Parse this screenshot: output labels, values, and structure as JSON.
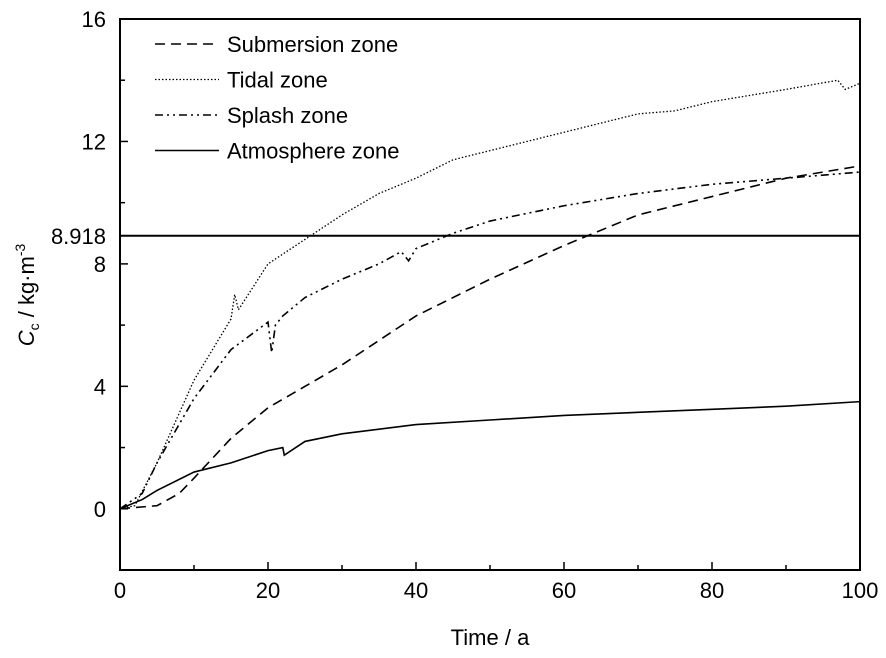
{
  "chart_data": {
    "type": "line",
    "title": "",
    "xlabel": "Time / a",
    "ylabel_main": "C",
    "ylabel_sub": "c",
    "ylabel_unit": " / kg·m",
    "ylabel_sup": "-3",
    "xlim": [
      0,
      100
    ],
    "ylim": [
      -2,
      16
    ],
    "xticks": [
      0,
      20,
      40,
      60,
      80,
      100
    ],
    "yticks": [
      0,
      4,
      8,
      12,
      16
    ],
    "legend_position": "top-left",
    "reference_line": {
      "value": 8.918,
      "label": "8.918"
    },
    "series": [
      {
        "name": "Submersion zone",
        "style": "dashed",
        "x": [
          0,
          5,
          8,
          10,
          15,
          20,
          30,
          40,
          50,
          60,
          70,
          80,
          90,
          100
        ],
        "y": [
          0,
          0.1,
          0.5,
          1,
          2.3,
          3.3,
          4.7,
          6.3,
          7.5,
          8.6,
          9.6,
          10.2,
          10.8,
          11.2
        ]
      },
      {
        "name": "Tidal zone",
        "style": "dotted",
        "x": [
          0,
          2,
          5,
          10,
          15,
          15.5,
          16,
          20,
          25,
          30,
          35,
          40,
          45,
          50,
          60,
          70,
          75,
          80,
          90,
          97,
          98,
          100
        ],
        "y": [
          0,
          0.1,
          1.5,
          4.2,
          6.2,
          7,
          6.5,
          8,
          8.8,
          9.6,
          10.3,
          10.8,
          11.4,
          11.7,
          12.3,
          12.9,
          13,
          13.3,
          13.7,
          14,
          13.7,
          13.9
        ]
      },
      {
        "name": "Splash zone",
        "style": "dashdotdot",
        "x": [
          0,
          3,
          5,
          10,
          15,
          20,
          20.5,
          21,
          22,
          25,
          30,
          35,
          38,
          39,
          40,
          45,
          50,
          60,
          70,
          80,
          90,
          100
        ],
        "y": [
          0,
          0.5,
          1.5,
          3.6,
          5.2,
          6.1,
          5.1,
          6,
          6.3,
          6.9,
          7.5,
          8,
          8.4,
          8.1,
          8.5,
          9,
          9.4,
          9.9,
          10.3,
          10.6,
          10.8,
          11
        ]
      },
      {
        "name": "Atmosphere zone",
        "style": "solid",
        "x": [
          0,
          3,
          5,
          10,
          15,
          20,
          22,
          22.2,
          25,
          30,
          40,
          50,
          60,
          70,
          80,
          90,
          100
        ],
        "y": [
          0,
          0.3,
          0.6,
          1.2,
          1.5,
          1.9,
          2,
          1.75,
          2.2,
          2.45,
          2.75,
          2.9,
          3.05,
          3.15,
          3.25,
          3.35,
          3.5
        ]
      }
    ]
  }
}
